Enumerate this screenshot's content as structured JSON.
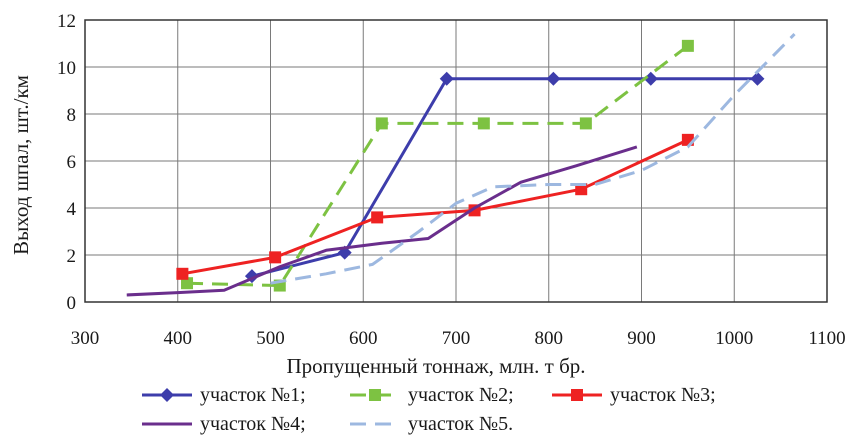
{
  "chart_data": {
    "type": "line",
    "xlabel": "Пропущенный тоннаж, млн. т бр.",
    "ylabel": "Выход шпал, шт./км",
    "xlim": [
      300,
      1100
    ],
    "ylim": [
      0,
      12
    ],
    "xticks": [
      "300",
      "400",
      "500",
      "600",
      "700",
      "800",
      "900",
      "1000",
      "1100"
    ],
    "yticks": [
      "0",
      "2",
      "4",
      "6",
      "8",
      "10",
      "12"
    ],
    "grid": true,
    "legend_position": "bottom",
    "series": [
      {
        "name": "участок №1;",
        "color": "#3d3dab",
        "dash": "solid",
        "marker": "diamond",
        "points": [
          [
            480,
            1.1
          ],
          [
            580,
            2.1
          ],
          [
            690,
            9.5
          ],
          [
            805,
            9.5
          ],
          [
            910,
            9.5
          ],
          [
            1025,
            9.5
          ]
        ]
      },
      {
        "name": "участок №2;",
        "color": "#7dc242",
        "dash": "dashed",
        "marker": "square",
        "points": [
          [
            410,
            0.8
          ],
          [
            510,
            0.7
          ],
          [
            620,
            7.6
          ],
          [
            730,
            7.6
          ],
          [
            840,
            7.6
          ],
          [
            950,
            10.9
          ]
        ]
      },
      {
        "name": "участок №3;",
        "color": "#ee2222",
        "dash": "solid",
        "marker": "square",
        "points": [
          [
            405,
            1.2
          ],
          [
            505,
            1.9
          ],
          [
            615,
            3.6
          ],
          [
            720,
            3.9
          ],
          [
            835,
            4.8
          ],
          [
            950,
            6.9
          ]
        ]
      },
      {
        "name": "участок №4;",
        "color": "#6a2e8c",
        "dash": "solid",
        "marker": "none",
        "points": [
          [
            345,
            0.3
          ],
          [
            400,
            0.4
          ],
          [
            450,
            0.5
          ],
          [
            510,
            1.5
          ],
          [
            560,
            2.2
          ],
          [
            620,
            2.5
          ],
          [
            670,
            2.7
          ],
          [
            720,
            4.0
          ],
          [
            770,
            5.1
          ],
          [
            830,
            5.8
          ],
          [
            895,
            6.6
          ]
        ]
      },
      {
        "name": "участок №5.",
        "color": "#9db8e0",
        "dash": "dashed",
        "marker": "none",
        "points": [
          [
            500,
            0.8
          ],
          [
            560,
            1.2
          ],
          [
            610,
            1.6
          ],
          [
            660,
            3.0
          ],
          [
            700,
            4.2
          ],
          [
            740,
            4.9
          ],
          [
            800,
            5.0
          ],
          [
            850,
            5.0
          ],
          [
            900,
            5.6
          ],
          [
            950,
            6.6
          ],
          [
            1000,
            8.8
          ],
          [
            1065,
            11.4
          ]
        ]
      }
    ]
  }
}
